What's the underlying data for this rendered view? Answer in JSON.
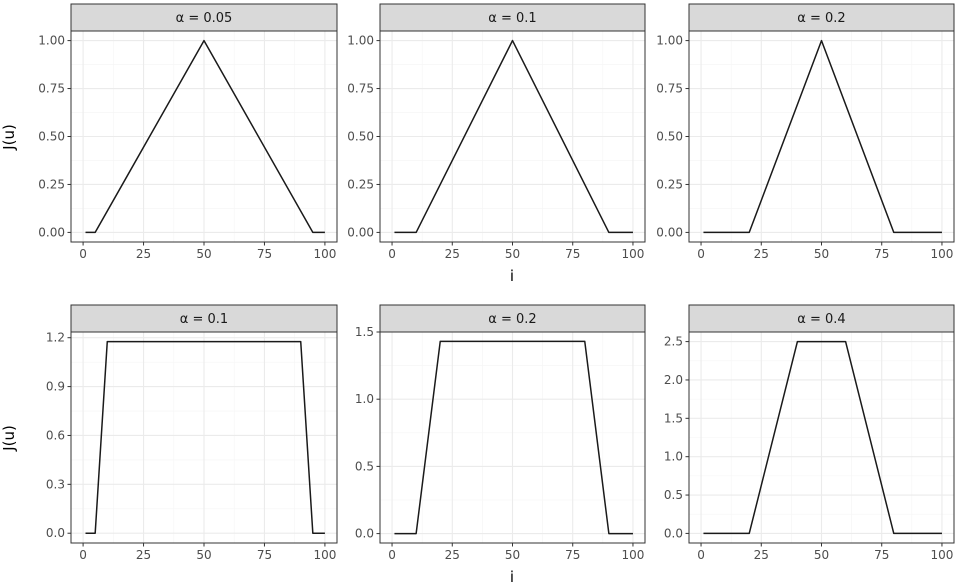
{
  "figure": {
    "xlabel_top": "i",
    "ylabel_top": "J(u)",
    "xlabel_bottom": "i",
    "ylabel_bottom": "J(u)"
  },
  "chart_data": [
    {
      "type": "line",
      "strip": "α = 0.05",
      "xlim": [
        -5,
        105
      ],
      "ylim": [
        -0.05,
        1.05
      ],
      "xticks": [
        0,
        25,
        50,
        75,
        100
      ],
      "xtick_labels": [
        "0",
        "25",
        "50",
        "75",
        "100"
      ],
      "yticks": [
        0,
        0.25,
        0.5,
        0.75,
        1
      ],
      "ytick_labels": [
        "0.00",
        "0.25",
        "0.50",
        "0.75",
        "1.00"
      ],
      "grid": true,
      "x": [
        1,
        5,
        50,
        95,
        100
      ],
      "y": [
        0,
        0,
        1,
        0,
        0
      ]
    },
    {
      "type": "line",
      "strip": "α = 0.1",
      "xlim": [
        -5,
        105
      ],
      "ylim": [
        -0.05,
        1.05
      ],
      "xticks": [
        0,
        25,
        50,
        75,
        100
      ],
      "xtick_labels": [
        "0",
        "25",
        "50",
        "75",
        "100"
      ],
      "yticks": [
        0,
        0.25,
        0.5,
        0.75,
        1
      ],
      "ytick_labels": [
        "0.00",
        "0.25",
        "0.50",
        "0.75",
        "1.00"
      ],
      "grid": true,
      "x": [
        1,
        10,
        50,
        90,
        100
      ],
      "y": [
        0,
        0,
        1,
        0,
        0
      ]
    },
    {
      "type": "line",
      "strip": "α = 0.2",
      "xlim": [
        -5,
        105
      ],
      "ylim": [
        -0.05,
        1.05
      ],
      "xticks": [
        0,
        25,
        50,
        75,
        100
      ],
      "xtick_labels": [
        "0",
        "25",
        "50",
        "75",
        "100"
      ],
      "yticks": [
        0,
        0.25,
        0.5,
        0.75,
        1
      ],
      "ytick_labels": [
        "0.00",
        "0.25",
        "0.50",
        "0.75",
        "1.00"
      ],
      "grid": true,
      "x": [
        1,
        20,
        50,
        80,
        100
      ],
      "y": [
        0,
        0,
        1,
        0,
        0
      ]
    },
    {
      "type": "line",
      "strip": "α = 0.1",
      "xlim": [
        -5,
        105
      ],
      "ylim": [
        -0.06,
        1.235
      ],
      "xticks": [
        0,
        25,
        50,
        75,
        100
      ],
      "xtick_labels": [
        "0",
        "25",
        "50",
        "75",
        "100"
      ],
      "yticks": [
        0,
        0.3,
        0.6,
        0.9,
        1.2
      ],
      "ytick_labels": [
        "0.0",
        "0.3",
        "0.6",
        "0.9",
        "1.2"
      ],
      "grid": true,
      "x": [
        1,
        5,
        10,
        90,
        95,
        100
      ],
      "y": [
        0,
        0,
        1.176,
        1.176,
        0,
        0
      ]
    },
    {
      "type": "line",
      "strip": "α = 0.2",
      "xlim": [
        -5,
        105
      ],
      "ylim": [
        -0.07,
        1.5
      ],
      "xticks": [
        0,
        25,
        50,
        75,
        100
      ],
      "xtick_labels": [
        "0",
        "25",
        "50",
        "75",
        "100"
      ],
      "yticks": [
        0,
        0.5,
        1,
        1.5
      ],
      "ytick_labels": [
        "0.0",
        "0.5",
        "1.0",
        "1.5"
      ],
      "grid": true,
      "x": [
        1,
        10,
        20,
        80,
        90,
        100
      ],
      "y": [
        0,
        0,
        1.43,
        1.43,
        0,
        0
      ]
    },
    {
      "type": "line",
      "strip": "α = 0.4",
      "xlim": [
        -5,
        105
      ],
      "ylim": [
        -0.125,
        2.625
      ],
      "xticks": [
        0,
        25,
        50,
        75,
        100
      ],
      "xtick_labels": [
        "0",
        "25",
        "50",
        "75",
        "100"
      ],
      "yticks": [
        0,
        0.5,
        1,
        1.5,
        2,
        2.5
      ],
      "ytick_labels": [
        "0.0",
        "0.5",
        "1.0",
        "1.5",
        "2.0",
        "2.5"
      ],
      "grid": true,
      "x": [
        1,
        20,
        40,
        60,
        80,
        100
      ],
      "y": [
        0,
        0,
        2.5,
        2.5,
        0,
        0
      ]
    }
  ],
  "colors": {
    "line": "#1a1a1a",
    "strip_fill": "#d9d9d9",
    "panel_border": "#333333",
    "grid_major": "#ebebeb",
    "grid_minor": "#f5f5f5"
  }
}
